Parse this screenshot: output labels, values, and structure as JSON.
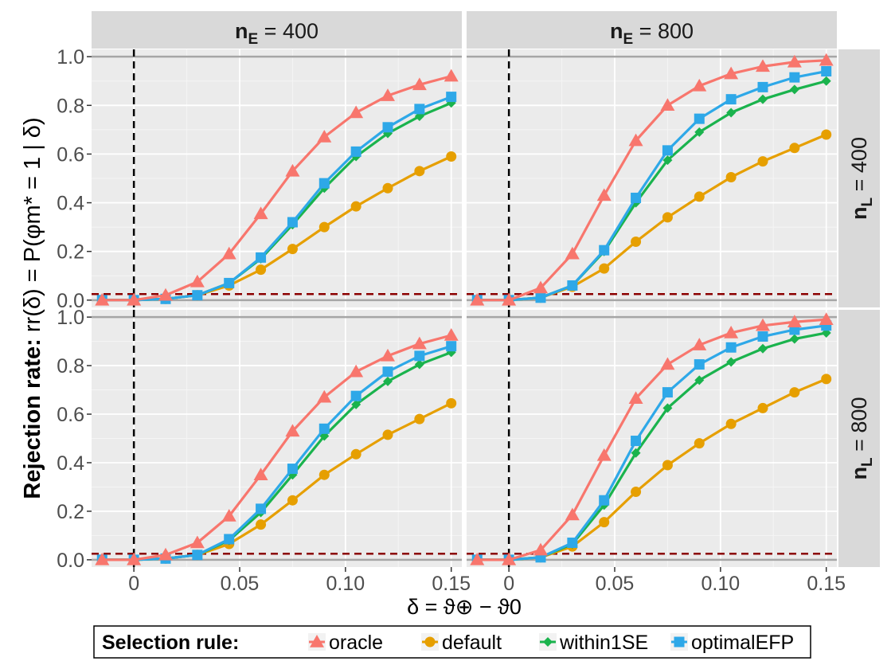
{
  "chart_data": {
    "type": "line",
    "panels": [
      {
        "col_strip": "400",
        "row_strip": "400",
        "series": [
          {
            "name": "oracle",
            "values": [
              0,
              0,
              0.02,
              0.075,
              0.19,
              0.355,
              0.53,
              0.67,
              0.77,
              0.84,
              0.885,
              0.92
            ]
          },
          {
            "name": "default",
            "values": [
              0,
              0,
              0.005,
              0.02,
              0.06,
              0.125,
              0.21,
              0.3,
              0.385,
              0.46,
              0.53,
              0.59
            ]
          },
          {
            "name": "within1SE",
            "values": [
              0,
              0,
              0.005,
              0.02,
              0.07,
              0.17,
              0.31,
              0.46,
              0.59,
              0.685,
              0.755,
              0.81
            ]
          },
          {
            "name": "optimalEFP",
            "values": [
              0,
              0,
              0.005,
              0.02,
              0.07,
              0.175,
              0.32,
              0.48,
              0.61,
              0.71,
              0.785,
              0.835
            ]
          }
        ]
      },
      {
        "col_strip": "800",
        "row_strip": "400",
        "series": [
          {
            "name": "oracle",
            "values": [
              0,
              0,
              0.05,
              0.19,
              0.43,
              0.655,
              0.8,
              0.88,
              0.93,
              0.96,
              0.978,
              0.985
            ]
          },
          {
            "name": "default",
            "values": [
              0,
              0,
              0.01,
              0.055,
              0.13,
              0.24,
              0.34,
              0.425,
              0.505,
              0.57,
              0.625,
              0.68
            ]
          },
          {
            "name": "within1SE",
            "values": [
              0,
              0,
              0.01,
              0.06,
              0.2,
              0.4,
              0.575,
              0.69,
              0.77,
              0.825,
              0.865,
              0.9
            ]
          },
          {
            "name": "optimalEFP",
            "values": [
              0,
              0,
              0.01,
              0.06,
              0.205,
              0.42,
              0.615,
              0.745,
              0.825,
              0.875,
              0.915,
              0.94
            ]
          }
        ]
      },
      {
        "col_strip": "400",
        "row_strip": "800",
        "series": [
          {
            "name": "oracle",
            "values": [
              0,
              0,
              0.02,
              0.07,
              0.18,
              0.35,
              0.53,
              0.67,
              0.775,
              0.84,
              0.89,
              0.925
            ]
          },
          {
            "name": "default",
            "values": [
              0,
              0,
              0.005,
              0.02,
              0.065,
              0.145,
              0.245,
              0.35,
              0.435,
              0.515,
              0.58,
              0.645
            ]
          },
          {
            "name": "within1SE",
            "values": [
              0,
              0,
              0.005,
              0.02,
              0.08,
              0.195,
              0.35,
              0.51,
              0.64,
              0.735,
              0.805,
              0.855
            ]
          },
          {
            "name": "optimalEFP",
            "values": [
              0,
              0,
              0.005,
              0.02,
              0.085,
              0.21,
              0.375,
              0.54,
              0.675,
              0.775,
              0.84,
              0.88
            ]
          }
        ]
      },
      {
        "col_strip": "800",
        "row_strip": "800",
        "series": [
          {
            "name": "oracle",
            "values": [
              0,
              0,
              0.04,
              0.185,
              0.43,
              0.665,
              0.805,
              0.885,
              0.935,
              0.965,
              0.98,
              0.99
            ]
          },
          {
            "name": "default",
            "values": [
              0,
              0,
              0.01,
              0.055,
              0.155,
              0.28,
              0.39,
              0.48,
              0.56,
              0.625,
              0.69,
              0.745
            ]
          },
          {
            "name": "within1SE",
            "values": [
              0,
              0,
              0.01,
              0.065,
              0.225,
              0.44,
              0.625,
              0.74,
              0.815,
              0.87,
              0.91,
              0.935
            ]
          },
          {
            "name": "optimalEFP",
            "values": [
              0,
              0,
              0.01,
              0.07,
              0.245,
              0.49,
              0.69,
              0.805,
              0.875,
              0.92,
              0.948,
              0.965
            ]
          }
        ]
      }
    ],
    "x": [
      -0.015,
      0,
      0.015,
      0.03,
      0.045,
      0.06,
      0.075,
      0.09,
      0.105,
      0.12,
      0.135,
      0.15
    ],
    "xlim": [
      -0.02,
      0.155
    ],
    "ylim": [
      -0.03,
      1.03
    ],
    "x_ticks": [
      0,
      0.05,
      0.1,
      0.15
    ],
    "x_tick_labels": [
      "0",
      "0.05",
      "0.10",
      "0.15"
    ],
    "y_ticks": [
      0,
      0.2,
      0.4,
      0.6,
      0.8,
      1
    ],
    "y_tick_labels": [
      "0.0",
      "0.2",
      "0.4",
      "0.6",
      "0.8",
      "1.0"
    ],
    "reference_lines": {
      "vertical_dashed_x": 0,
      "horizontal_dashed_y": 0.025,
      "horizontal_solid_y": [
        0,
        1
      ]
    },
    "col_strip_prefix": "n",
    "col_strip_sub": "E",
    "row_strip_prefix": "n",
    "row_strip_sub": "L",
    "xlabel": "δ = ϑ⊕ − ϑ0",
    "ylabel": "Rejection rate: rr(δ) = P(φm* = 1 | δ)",
    "legend_title": "Selection rule:",
    "legend_position": "bottom",
    "grid": true,
    "series_styles": [
      {
        "name": "oracle",
        "color": "#f8766d",
        "marker": "triangle"
      },
      {
        "name": "default",
        "color": "#e69f00",
        "marker": "circle"
      },
      {
        "name": "within1SE",
        "color": "#1ab34d",
        "marker": "diamond"
      },
      {
        "name": "optimalEFP",
        "color": "#2ea8e8",
        "marker": "square"
      }
    ],
    "colors": {
      "panel_bg": "#ebebeb",
      "strip_bg": "#d9d9d9",
      "grid_major": "#ffffff",
      "ref_solid": "#a6a6a6",
      "vline": "#000000",
      "hline_dashed": "#8b0000"
    }
  }
}
